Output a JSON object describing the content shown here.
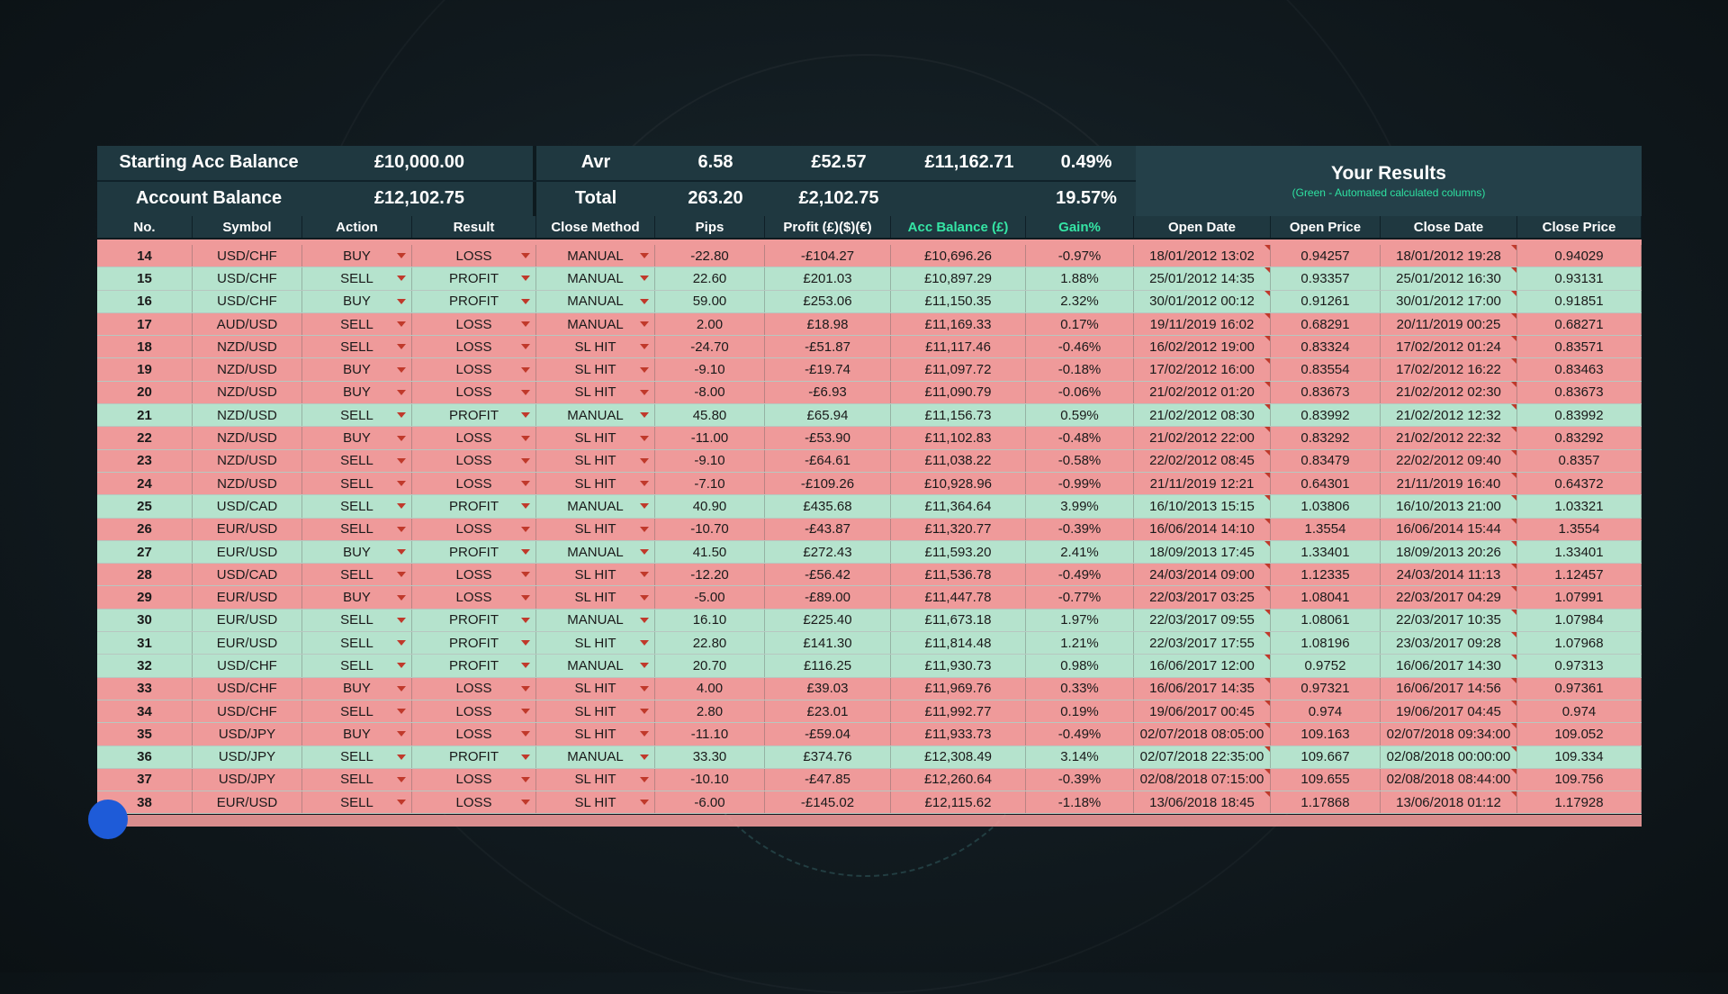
{
  "summary": {
    "starting_label": "Starting Acc Balance",
    "starting_value": "£10,000.00",
    "account_label": "Account Balance",
    "account_value": "£12,102.75",
    "avr_label": "Avr",
    "avr_pips": "6.58",
    "avr_profit": "£52.57",
    "avr_balance": "£11,162.71",
    "avr_gain": "0.49%",
    "total_label": "Total",
    "total_pips": "263.20",
    "total_profit": "£2,102.75",
    "total_gain": "19.57%",
    "results_title": "Your Results",
    "results_subtitle": "(Green - Automated calculated columns)"
  },
  "columns": [
    "No.",
    "Symbol",
    "Action",
    "Result",
    "Close Method",
    "Pips",
    "Profit (£)($)(€)",
    "Acc Balance (£)",
    "Gain%",
    "Open Date",
    "Open Price",
    "Close Date",
    "Close Price"
  ],
  "colors": {
    "loss": "#ef9a9a",
    "profit": "#b5e3cd",
    "header": "#1f3840",
    "accent_green": "#35e5a5",
    "dropdown_arrow": "#c0392b"
  },
  "rows": [
    {
      "no": "14",
      "symbol": "USD/CHF",
      "action": "BUY",
      "result": "LOSS",
      "method": "MANUAL",
      "pips": "-22.80",
      "profit": "-£104.27",
      "balance": "£10,696.26",
      "gain": "-0.97%",
      "open_date": "18/01/2012 13:02",
      "open_price": "0.94257",
      "close_date": "18/01/2012 19:28",
      "close_price": "0.94029"
    },
    {
      "no": "15",
      "symbol": "USD/CHF",
      "action": "SELL",
      "result": "PROFIT",
      "method": "MANUAL",
      "pips": "22.60",
      "profit": "£201.03",
      "balance": "£10,897.29",
      "gain": "1.88%",
      "open_date": "25/01/2012 14:35",
      "open_price": "0.93357",
      "close_date": "25/01/2012 16:30",
      "close_price": "0.93131"
    },
    {
      "no": "16",
      "symbol": "USD/CHF",
      "action": "BUY",
      "result": "PROFIT",
      "method": "MANUAL",
      "pips": "59.00",
      "profit": "£253.06",
      "balance": "£11,150.35",
      "gain": "2.32%",
      "open_date": "30/01/2012 00:12",
      "open_price": "0.91261",
      "close_date": "30/01/2012 17:00",
      "close_price": "0.91851"
    },
    {
      "no": "17",
      "symbol": "AUD/USD",
      "action": "SELL",
      "result": "LOSS",
      "method": "MANUAL",
      "pips": "2.00",
      "profit": "£18.98",
      "balance": "£11,169.33",
      "gain": "0.17%",
      "open_date": "19/11/2019 16:02",
      "open_price": "0.68291",
      "close_date": "20/11/2019 00:25",
      "close_price": "0.68271"
    },
    {
      "no": "18",
      "symbol": "NZD/USD",
      "action": "SELL",
      "result": "LOSS",
      "method": "SL HIT",
      "pips": "-24.70",
      "profit": "-£51.87",
      "balance": "£11,117.46",
      "gain": "-0.46%",
      "open_date": "16/02/2012 19:00",
      "open_price": "0.83324",
      "close_date": "17/02/2012 01:24",
      "close_price": "0.83571"
    },
    {
      "no": "19",
      "symbol": "NZD/USD",
      "action": "BUY",
      "result": "LOSS",
      "method": "SL HIT",
      "pips": "-9.10",
      "profit": "-£19.74",
      "balance": "£11,097.72",
      "gain": "-0.18%",
      "open_date": "17/02/2012 16:00",
      "open_price": "0.83554",
      "close_date": "17/02/2012 16:22",
      "close_price": "0.83463"
    },
    {
      "no": "20",
      "symbol": "NZD/USD",
      "action": "BUY",
      "result": "LOSS",
      "method": "SL HIT",
      "pips": "-8.00",
      "profit": "-£6.93",
      "balance": "£11,090.79",
      "gain": "-0.06%",
      "open_date": "21/02/2012 01:20",
      "open_price": "0.83673",
      "close_date": "21/02/2012 02:30",
      "close_price": "0.83673"
    },
    {
      "no": "21",
      "symbol": "NZD/USD",
      "action": "SELL",
      "result": "PROFIT",
      "method": "MANUAL",
      "pips": "45.80",
      "profit": "£65.94",
      "balance": "£11,156.73",
      "gain": "0.59%",
      "open_date": "21/02/2012 08:30",
      "open_price": "0.83992",
      "close_date": "21/02/2012 12:32",
      "close_price": "0.83992"
    },
    {
      "no": "22",
      "symbol": "NZD/USD",
      "action": "BUY",
      "result": "LOSS",
      "method": "SL HIT",
      "pips": "-11.00",
      "profit": "-£53.90",
      "balance": "£11,102.83",
      "gain": "-0.48%",
      "open_date": "21/02/2012 22:00",
      "open_price": "0.83292",
      "close_date": "21/02/2012 22:32",
      "close_price": "0.83292"
    },
    {
      "no": "23",
      "symbol": "NZD/USD",
      "action": "SELL",
      "result": "LOSS",
      "method": "SL HIT",
      "pips": "-9.10",
      "profit": "-£64.61",
      "balance": "£11,038.22",
      "gain": "-0.58%",
      "open_date": "22/02/2012 08:45",
      "open_price": "0.83479",
      "close_date": "22/02/2012 09:40",
      "close_price": "0.8357"
    },
    {
      "no": "24",
      "symbol": "NZD/USD",
      "action": "SELL",
      "result": "LOSS",
      "method": "SL HIT",
      "pips": "-7.10",
      "profit": "-£109.26",
      "balance": "£10,928.96",
      "gain": "-0.99%",
      "open_date": "21/11/2019 12:21",
      "open_price": "0.64301",
      "close_date": "21/11/2019 16:40",
      "close_price": "0.64372"
    },
    {
      "no": "25",
      "symbol": "USD/CAD",
      "action": "SELL",
      "result": "PROFIT",
      "method": "MANUAL",
      "pips": "40.90",
      "profit": "£435.68",
      "balance": "£11,364.64",
      "gain": "3.99%",
      "open_date": "16/10/2013 15:15",
      "open_price": "1.03806",
      "close_date": "16/10/2013 21:00",
      "close_price": "1.03321"
    },
    {
      "no": "26",
      "symbol": "EUR/USD",
      "action": "SELL",
      "result": "LOSS",
      "method": "SL HIT",
      "pips": "-10.70",
      "profit": "-£43.87",
      "balance": "£11,320.77",
      "gain": "-0.39%",
      "open_date": "16/06/2014 14:10",
      "open_price": "1.3554",
      "close_date": "16/06/2014 15:44",
      "close_price": "1.3554"
    },
    {
      "no": "27",
      "symbol": "EUR/USD",
      "action": "BUY",
      "result": "PROFIT",
      "method": "MANUAL",
      "pips": "41.50",
      "profit": "£272.43",
      "balance": "£11,593.20",
      "gain": "2.41%",
      "open_date": "18/09/2013 17:45",
      "open_price": "1.33401",
      "close_date": "18/09/2013 20:26",
      "close_price": "1.33401"
    },
    {
      "no": "28",
      "symbol": "USD/CAD",
      "action": "SELL",
      "result": "LOSS",
      "method": "SL HIT",
      "pips": "-12.20",
      "profit": "-£56.42",
      "balance": "£11,536.78",
      "gain": "-0.49%",
      "open_date": "24/03/2014 09:00",
      "open_price": "1.12335",
      "close_date": "24/03/2014 11:13",
      "close_price": "1.12457"
    },
    {
      "no": "29",
      "symbol": "EUR/USD",
      "action": "BUY",
      "result": "LOSS",
      "method": "SL HIT",
      "pips": "-5.00",
      "profit": "-£89.00",
      "balance": "£11,447.78",
      "gain": "-0.77%",
      "open_date": "22/03/2017 03:25",
      "open_price": "1.08041",
      "close_date": "22/03/2017 04:29",
      "close_price": "1.07991"
    },
    {
      "no": "30",
      "symbol": "EUR/USD",
      "action": "SELL",
      "result": "PROFIT",
      "method": "MANUAL",
      "pips": "16.10",
      "profit": "£225.40",
      "balance": "£11,673.18",
      "gain": "1.97%",
      "open_date": "22/03/2017 09:55",
      "open_price": "1.08061",
      "close_date": "22/03/2017 10:35",
      "close_price": "1.07984"
    },
    {
      "no": "31",
      "symbol": "EUR/USD",
      "action": "SELL",
      "result": "PROFIT",
      "method": "SL HIT",
      "pips": "22.80",
      "profit": "£141.30",
      "balance": "£11,814.48",
      "gain": "1.21%",
      "open_date": "22/03/2017 17:55",
      "open_price": "1.08196",
      "close_date": "23/03/2017 09:28",
      "close_price": "1.07968"
    },
    {
      "no": "32",
      "symbol": "USD/CHF",
      "action": "SELL",
      "result": "PROFIT",
      "method": "MANUAL",
      "pips": "20.70",
      "profit": "£116.25",
      "balance": "£11,930.73",
      "gain": "0.98%",
      "open_date": "16/06/2017 12:00",
      "open_price": "0.9752",
      "close_date": "16/06/2017 14:30",
      "close_price": "0.97313"
    },
    {
      "no": "33",
      "symbol": "USD/CHF",
      "action": "BUY",
      "result": "LOSS",
      "method": "SL HIT",
      "pips": "4.00",
      "profit": "£39.03",
      "balance": "£11,969.76",
      "gain": "0.33%",
      "open_date": "16/06/2017 14:35",
      "open_price": "0.97321",
      "close_date": "16/06/2017 14:56",
      "close_price": "0.97361"
    },
    {
      "no": "34",
      "symbol": "USD/CHF",
      "action": "SELL",
      "result": "LOSS",
      "method": "SL HIT",
      "pips": "2.80",
      "profit": "£23.01",
      "balance": "£11,992.77",
      "gain": "0.19%",
      "open_date": "19/06/2017 00:45",
      "open_price": "0.974",
      "close_date": "19/06/2017 04:45",
      "close_price": "0.974"
    },
    {
      "no": "35",
      "symbol": "USD/JPY",
      "action": "BUY",
      "result": "LOSS",
      "method": "SL HIT",
      "pips": "-11.10",
      "profit": "-£59.04",
      "balance": "£11,933.73",
      "gain": "-0.49%",
      "open_date": "02/07/2018 08:05:00",
      "open_price": "109.163",
      "close_date": "02/07/2018 09:34:00",
      "close_price": "109.052"
    },
    {
      "no": "36",
      "symbol": "USD/JPY",
      "action": "SELL",
      "result": "PROFIT",
      "method": "MANUAL",
      "pips": "33.30",
      "profit": "£374.76",
      "balance": "£12,308.49",
      "gain": "3.14%",
      "open_date": "02/07/2018 22:35:00",
      "open_price": "109.667",
      "close_date": "02/08/2018 00:00:00",
      "close_price": "109.334"
    },
    {
      "no": "37",
      "symbol": "USD/JPY",
      "action": "SELL",
      "result": "LOSS",
      "method": "SL HIT",
      "pips": "-10.10",
      "profit": "-£47.85",
      "balance": "£12,260.64",
      "gain": "-0.39%",
      "open_date": "02/08/2018 07:15:00",
      "open_price": "109.655",
      "close_date": "02/08/2018 08:44:00",
      "close_price": "109.756"
    },
    {
      "no": "38",
      "symbol": "EUR/USD",
      "action": "SELL",
      "result": "LOSS",
      "method": "SL HIT",
      "pips": "-6.00",
      "profit": "-£145.02",
      "balance": "£12,115.62",
      "gain": "-1.18%",
      "open_date": "13/06/2018 18:45",
      "open_price": "1.17868",
      "close_date": "13/06/2018 01:12",
      "close_price": "1.17928"
    }
  ]
}
